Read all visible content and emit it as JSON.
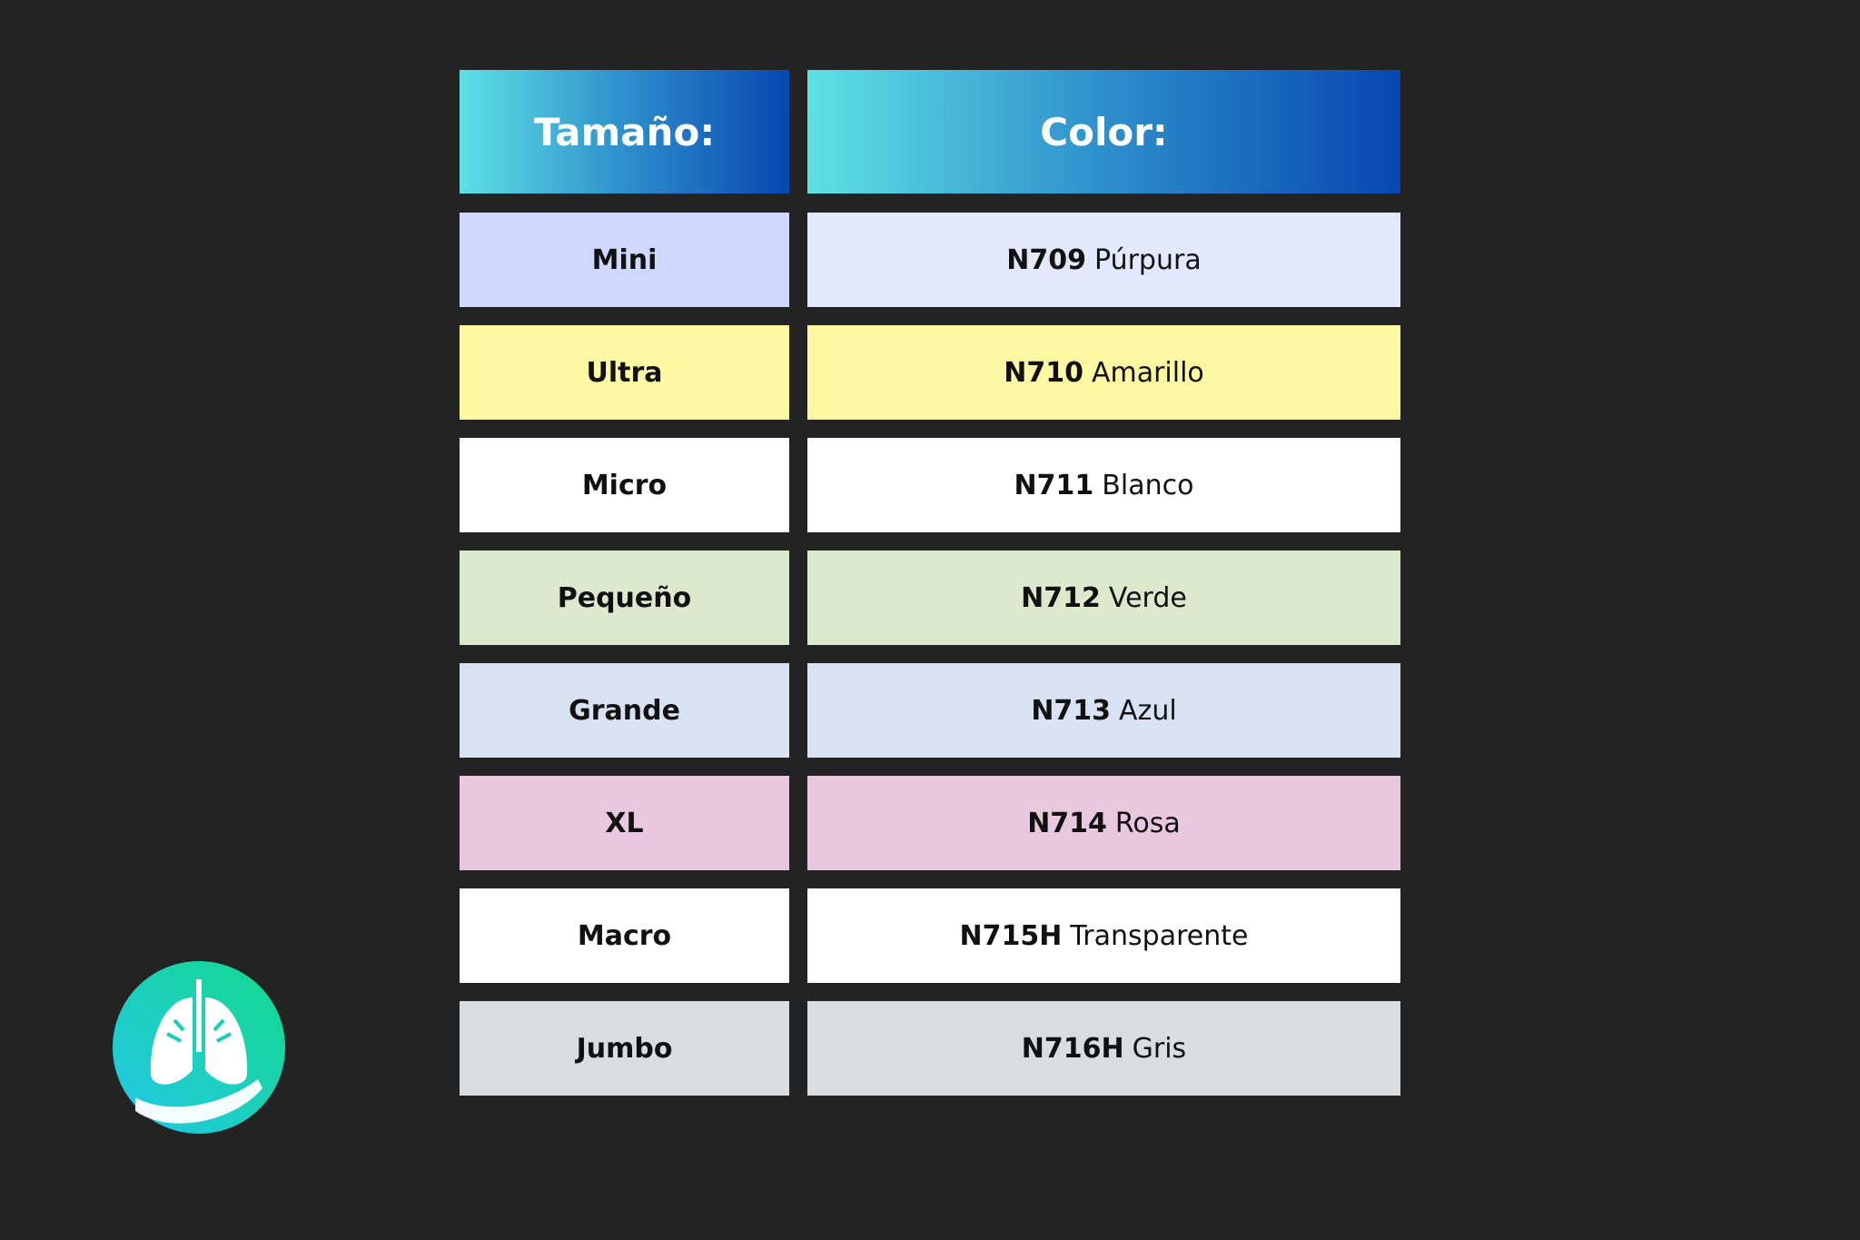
{
  "table": {
    "header": [
      "Tamaño:",
      "Color:"
    ],
    "rows": [
      {
        "size": "Mini",
        "code": "N709",
        "color": "Púrpura"
      },
      {
        "size": "Ultra",
        "code": "N710",
        "color": "Amarillo"
      },
      {
        "size": "Micro",
        "code": "N711",
        "color": "Blanco"
      },
      {
        "size": "Pequeño",
        "code": "N712",
        "color": "Verde"
      },
      {
        "size": "Grande",
        "code": "N713",
        "color": "Azul"
      },
      {
        "size": "XL",
        "code": "N714",
        "color": "Rosa"
      },
      {
        "size": "Macro",
        "code": "N715H",
        "color": "Transparente"
      },
      {
        "size": "Jumbo",
        "code": "N716H",
        "color": "Gris"
      }
    ]
  }
}
